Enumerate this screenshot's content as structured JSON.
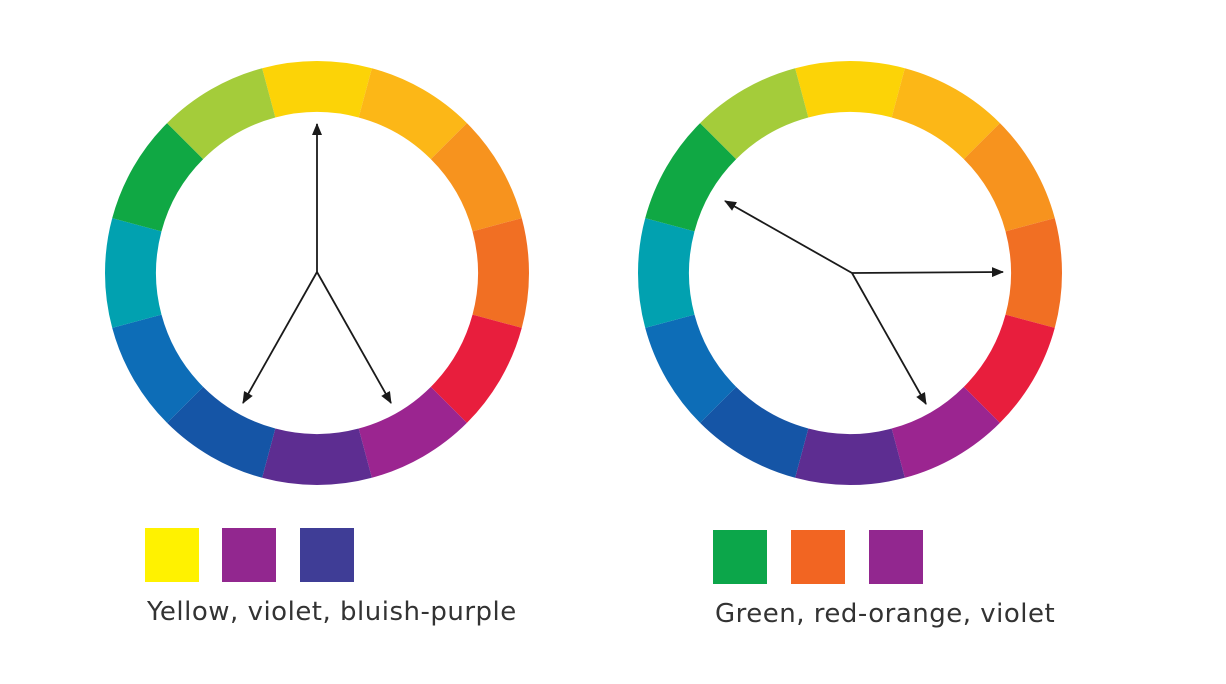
{
  "wheel_colors": [
    "#fcd307",
    "#fcb717",
    "#f7931e",
    "#f16f23",
    "#e81e3d",
    "#9b2590",
    "#5d2d91",
    "#1555a6",
    "#0d6db7",
    "#01a1b0",
    "#10a844",
    "#a4cc3a"
  ],
  "panels": [
    {
      "caption": "Yellow, violet, bluish-purple",
      "swatches": [
        {
          "name": "yellow",
          "color": "#fff200"
        },
        {
          "name": "violet",
          "color": "#92278f"
        },
        {
          "name": "bluish-purple",
          "color": "#3f3d96"
        }
      ]
    },
    {
      "caption": "Green, red-orange, violet",
      "swatches": [
        {
          "name": "green",
          "color": "#0ca64a"
        },
        {
          "name": "red-orange",
          "color": "#f26522"
        },
        {
          "name": "violet",
          "color": "#92278f"
        }
      ]
    }
  ]
}
